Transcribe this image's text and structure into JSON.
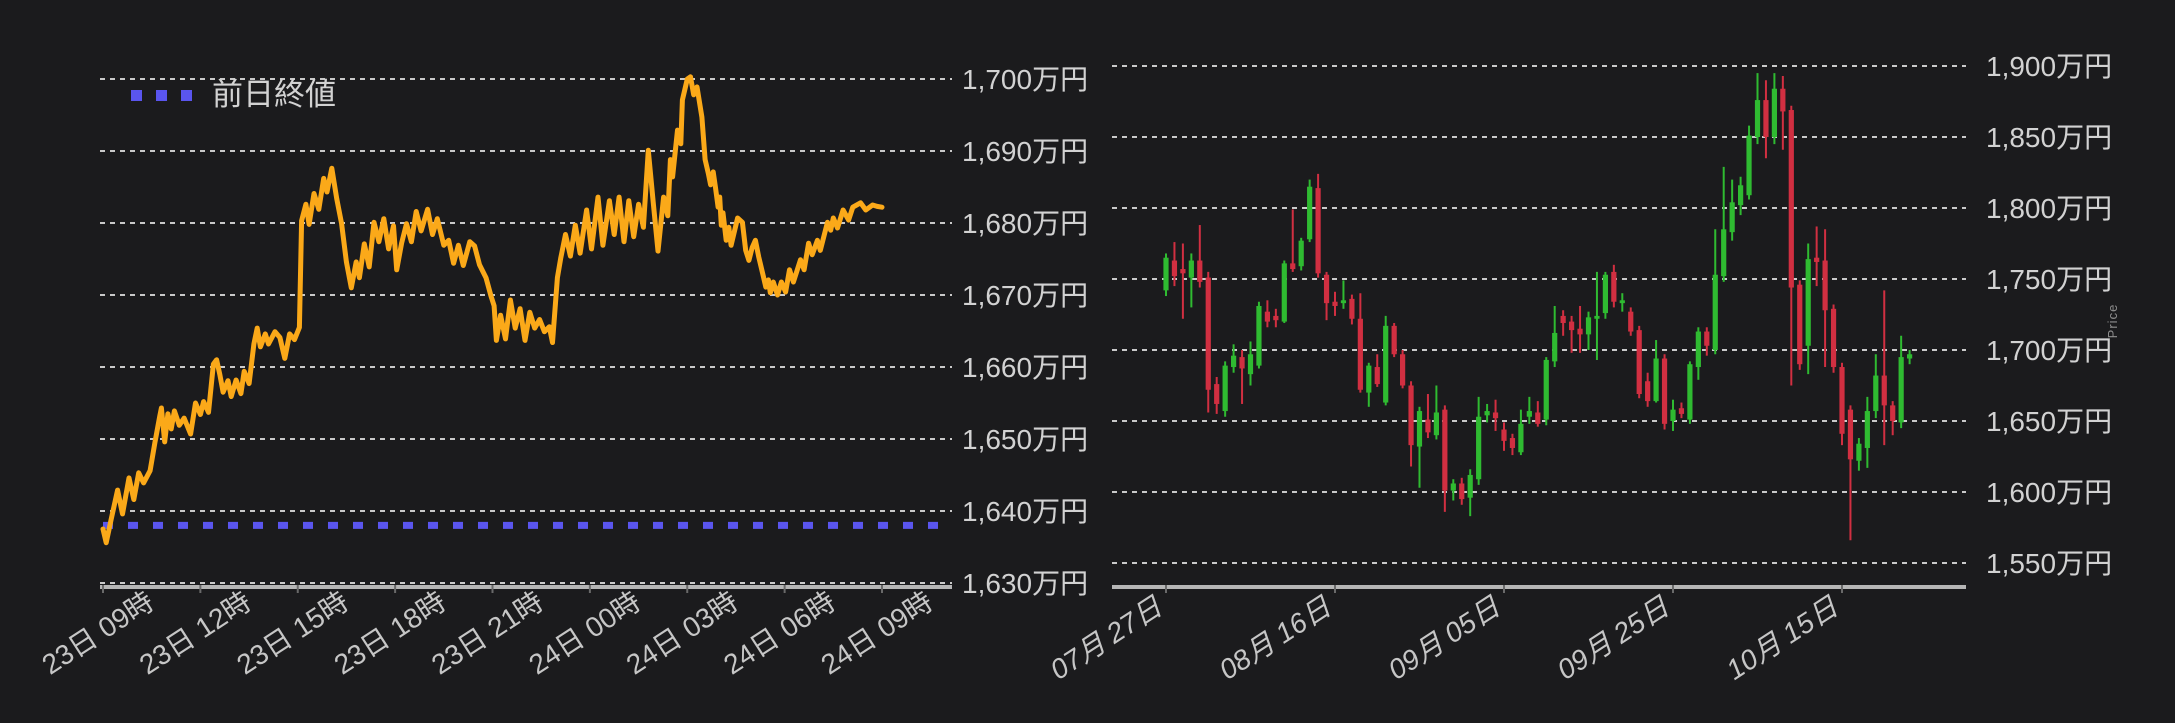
{
  "colors": {
    "background": "#1b1b1d",
    "grid": "#e9e9e9",
    "axis_text": "#d2d2d2",
    "x_axis_text": "#c6c6c6",
    "axis_line": "#b6b6b6",
    "tick": "#6a6a6a",
    "line": "#fba919",
    "previous_close": "#5a55ee",
    "candle_up": "#2fbb31",
    "candle_down": "#d12f41",
    "axis_title_text": "#8f8f8f"
  },
  "chart_data": [
    {
      "type": "line",
      "legend_label": "前日終値",
      "unit": "万円",
      "x_tick_labels": [
        "23日 09時",
        "23日 12時",
        "23日 15時",
        "23日 18時",
        "23日 21時",
        "24日 00時",
        "24日 03時",
        "24日 06時",
        "24日 09時"
      ],
      "x_tick_hours": [
        0,
        3,
        6,
        9,
        12,
        15,
        18,
        21,
        24
      ],
      "x_range_hours": [
        0,
        24
      ],
      "y_tick_labels": [
        "1,700万円",
        "1,690万円",
        "1,680万円",
        "1,670万円",
        "1,660万円",
        "1,650万円",
        "1,640万円",
        "1,630万円"
      ],
      "y_ticks": [
        1700,
        1690,
        1680,
        1670,
        1660,
        1650,
        1640,
        1630
      ],
      "ylim": [
        1630,
        1703
      ],
      "grid": true,
      "previous_close": 1638,
      "points": [
        [
          0,
          1637.5
        ],
        [
          0.1,
          1635.6
        ],
        [
          0.25,
          1638.8
        ],
        [
          0.45,
          1642.9
        ],
        [
          0.6,
          1639.6
        ],
        [
          0.8,
          1644.6
        ],
        [
          0.95,
          1641.6
        ],
        [
          1.1,
          1645.3
        ],
        [
          1.25,
          1643.9
        ],
        [
          1.45,
          1645.6
        ],
        [
          1.6,
          1649.5
        ],
        [
          1.75,
          1653.2
        ],
        [
          1.8,
          1654.3
        ],
        [
          1.9,
          1649.6
        ],
        [
          2,
          1653.5
        ],
        [
          2.1,
          1651.4
        ],
        [
          2.2,
          1653.9
        ],
        [
          2.35,
          1651.9
        ],
        [
          2.5,
          1652.9
        ],
        [
          2.7,
          1650.7
        ],
        [
          2.85,
          1655
        ],
        [
          3,
          1653.4
        ],
        [
          3.1,
          1655.2
        ],
        [
          3.25,
          1653.7
        ],
        [
          3.4,
          1660.4
        ],
        [
          3.5,
          1661
        ],
        [
          3.6,
          1658.9
        ],
        [
          3.7,
          1656.5
        ],
        [
          3.85,
          1658.1
        ],
        [
          3.95,
          1655.9
        ],
        [
          4.1,
          1658.2
        ],
        [
          4.25,
          1656.3
        ],
        [
          4.35,
          1659.4
        ],
        [
          4.5,
          1657.7
        ],
        [
          4.65,
          1663.2
        ],
        [
          4.75,
          1665.4
        ],
        [
          4.85,
          1662.8
        ],
        [
          5,
          1664.6
        ],
        [
          5.1,
          1663.2
        ],
        [
          5.3,
          1664.9
        ],
        [
          5.45,
          1664.1
        ],
        [
          5.6,
          1661.2
        ],
        [
          5.75,
          1664.6
        ],
        [
          5.9,
          1663.8
        ],
        [
          6.05,
          1665.5
        ],
        [
          6.12,
          1680.3
        ],
        [
          6.25,
          1682.6
        ],
        [
          6.35,
          1679.8
        ],
        [
          6.5,
          1684.1
        ],
        [
          6.65,
          1681.9
        ],
        [
          6.8,
          1686.2
        ],
        [
          6.9,
          1684.3
        ],
        [
          7.05,
          1687.6
        ],
        [
          7.2,
          1683.4
        ],
        [
          7.35,
          1679.9
        ],
        [
          7.5,
          1674.6
        ],
        [
          7.65,
          1671
        ],
        [
          7.8,
          1674.6
        ],
        [
          7.9,
          1672.4
        ],
        [
          8.05,
          1677.1
        ],
        [
          8.2,
          1673.9
        ],
        [
          8.35,
          1680.1
        ],
        [
          8.5,
          1677.4
        ],
        [
          8.65,
          1680.6
        ],
        [
          8.8,
          1676.4
        ],
        [
          8.95,
          1679.6
        ],
        [
          9.05,
          1673.5
        ],
        [
          9.2,
          1677.2
        ],
        [
          9.35,
          1679.9
        ],
        [
          9.5,
          1677.4
        ],
        [
          9.65,
          1681.6
        ],
        [
          9.8,
          1678.9
        ],
        [
          10,
          1681.9
        ],
        [
          10.15,
          1678.4
        ],
        [
          10.3,
          1680.6
        ],
        [
          10.5,
          1676.9
        ],
        [
          10.65,
          1677.6
        ],
        [
          10.8,
          1674.4
        ],
        [
          10.95,
          1676.9
        ],
        [
          11.1,
          1674.1
        ],
        [
          11.3,
          1677.4
        ],
        [
          11.45,
          1676.8
        ],
        [
          11.6,
          1674.2
        ],
        [
          11.8,
          1672.4
        ],
        [
          11.95,
          1669.9
        ],
        [
          12.05,
          1668.5
        ],
        [
          12.12,
          1663.7
        ],
        [
          12.25,
          1667.2
        ],
        [
          12.4,
          1663.9
        ],
        [
          12.55,
          1669.3
        ],
        [
          12.7,
          1665.4
        ],
        [
          12.85,
          1668.1
        ],
        [
          13,
          1663.7
        ],
        [
          13.15,
          1667.6
        ],
        [
          13.3,
          1665.4
        ],
        [
          13.45,
          1666.6
        ],
        [
          13.6,
          1664.9
        ],
        [
          13.75,
          1665.6
        ],
        [
          13.85,
          1663.4
        ],
        [
          14,
          1672.4
        ],
        [
          14.1,
          1675.1
        ],
        [
          14.25,
          1678.4
        ],
        [
          14.4,
          1675.4
        ],
        [
          14.55,
          1679.7
        ],
        [
          14.7,
          1675.8
        ],
        [
          14.9,
          1681.8
        ],
        [
          15.05,
          1676.4
        ],
        [
          15.25,
          1683.6
        ],
        [
          15.4,
          1676.9
        ],
        [
          15.6,
          1683.1
        ],
        [
          15.75,
          1678.4
        ],
        [
          15.9,
          1683.6
        ],
        [
          16.05,
          1677.4
        ],
        [
          16.2,
          1683.1
        ],
        [
          16.35,
          1678.1
        ],
        [
          16.5,
          1682.6
        ],
        [
          16.65,
          1679.4
        ],
        [
          16.8,
          1690.1
        ],
        [
          16.95,
          1682.9
        ],
        [
          17.1,
          1676.1
        ],
        [
          17.27,
          1683.6
        ],
        [
          17.4,
          1681
        ],
        [
          17.48,
          1688.8
        ],
        [
          17.55,
          1686.4
        ],
        [
          17.7,
          1692.9
        ],
        [
          17.8,
          1691
        ],
        [
          17.85,
          1697.1
        ],
        [
          18,
          1700
        ],
        [
          18.1,
          1700.3
        ],
        [
          18.2,
          1697.8
        ],
        [
          18.3,
          1698.9
        ],
        [
          18.45,
          1694.7
        ],
        [
          18.55,
          1688.8
        ],
        [
          18.65,
          1686.9
        ],
        [
          18.72,
          1685.3
        ],
        [
          18.8,
          1687.1
        ],
        [
          18.87,
          1684.9
        ],
        [
          18.95,
          1682.2
        ],
        [
          19,
          1683.6
        ],
        [
          19.05,
          1679.7
        ],
        [
          19.1,
          1681.4
        ],
        [
          19.2,
          1677.6
        ],
        [
          19.28,
          1679.4
        ],
        [
          19.35,
          1676.9
        ],
        [
          19.55,
          1680.7
        ],
        [
          19.7,
          1680.1
        ],
        [
          19.8,
          1676.2
        ],
        [
          19.9,
          1674.8
        ],
        [
          20,
          1676.6
        ],
        [
          20.1,
          1677.6
        ],
        [
          20.2,
          1675.3
        ],
        [
          20.35,
          1672.5
        ],
        [
          20.42,
          1671.1
        ],
        [
          20.5,
          1672.1
        ],
        [
          20.56,
          1670.3
        ],
        [
          20.65,
          1671.8
        ],
        [
          20.78,
          1670
        ],
        [
          20.9,
          1671.8
        ],
        [
          21.03,
          1670.4
        ],
        [
          21.15,
          1673.5
        ],
        [
          21.27,
          1671.8
        ],
        [
          21.49,
          1674.9
        ],
        [
          21.6,
          1673.5
        ],
        [
          21.74,
          1677.2
        ],
        [
          21.85,
          1675.6
        ],
        [
          22.01,
          1677.6
        ],
        [
          22.1,
          1676.2
        ],
        [
          22.32,
          1680.1
        ],
        [
          22.42,
          1679
        ],
        [
          22.5,
          1680.7
        ],
        [
          22.63,
          1679.3
        ],
        [
          22.8,
          1681.8
        ],
        [
          22.97,
          1680.4
        ],
        [
          23.1,
          1682.2
        ],
        [
          23.34,
          1682.8
        ],
        [
          23.5,
          1681.8
        ],
        [
          23.71,
          1682.5
        ],
        [
          23.85,
          1682.3
        ],
        [
          24,
          1682.2
        ]
      ]
    },
    {
      "type": "candlestick",
      "y_axis_title": "Price",
      "unit": "万円",
      "x_tick_labels": [
        "07月 27日",
        "08月 16日",
        "09月 05日",
        "09月 25日",
        "10月 15日"
      ],
      "x_tick_indices": [
        0,
        20,
        40,
        60,
        80
      ],
      "y_tick_labels": [
        "1,900万円",
        "1,850万円",
        "1,800万円",
        "1,750万円",
        "1,700万円",
        "1,650万円",
        "1,600万円",
        "1,550万円"
      ],
      "y_ticks": [
        1900,
        1850,
        1800,
        1750,
        1700,
        1650,
        1600,
        1550
      ],
      "ylim": [
        1550,
        1900
      ],
      "grid": true,
      "candles": [
        [
          1742,
          1768,
          1738,
          1765
        ],
        [
          1763,
          1776,
          1745,
          1752
        ],
        [
          1757,
          1775,
          1722,
          1754
        ],
        [
          1751,
          1768,
          1730,
          1763
        ],
        [
          1763,
          1788,
          1744,
          1748
        ],
        [
          1751,
          1755,
          1656,
          1672
        ],
        [
          1676,
          1681,
          1655,
          1662
        ],
        [
          1657,
          1692,
          1653,
          1689
        ],
        [
          1688,
          1704,
          1684,
          1696
        ],
        [
          1695,
          1700,
          1662,
          1687
        ],
        [
          1683,
          1706,
          1675,
          1697
        ],
        [
          1689,
          1734,
          1687,
          1731
        ],
        [
          1727,
          1735,
          1716,
          1720
        ],
        [
          1724,
          1729,
          1716,
          1721
        ],
        [
          1720,
          1763,
          1719,
          1761
        ],
        [
          1761,
          1799,
          1755,
          1757
        ],
        [
          1759,
          1779,
          1756,
          1777
        ],
        [
          1778,
          1820,
          1776,
          1815
        ],
        [
          1814,
          1824,
          1751,
          1754
        ],
        [
          1753,
          1755,
          1721,
          1733
        ],
        [
          1734,
          1741,
          1724,
          1731
        ],
        [
          1733,
          1749,
          1729,
          1735
        ],
        [
          1736,
          1739,
          1718,
          1722
        ],
        [
          1722,
          1740,
          1670,
          1672
        ],
        [
          1670,
          1691,
          1660,
          1689
        ],
        [
          1688,
          1697,
          1674,
          1676
        ],
        [
          1663,
          1724,
          1661,
          1717
        ],
        [
          1717,
          1719,
          1695,
          1697
        ],
        [
          1697,
          1700,
          1673,
          1675
        ],
        [
          1675,
          1678,
          1618,
          1633
        ],
        [
          1632,
          1660,
          1603,
          1657
        ],
        [
          1651,
          1669,
          1638,
          1642
        ],
        [
          1640,
          1675,
          1637,
          1656
        ],
        [
          1658,
          1661,
          1586,
          1601
        ],
        [
          1601,
          1609,
          1594,
          1606
        ],
        [
          1606,
          1610,
          1591,
          1595
        ],
        [
          1596,
          1616,
          1583,
          1612
        ],
        [
          1609,
          1667,
          1605,
          1653
        ],
        [
          1654,
          1662,
          1649,
          1657
        ],
        [
          1656,
          1665,
          1643,
          1652
        ],
        [
          1644,
          1649,
          1629,
          1636
        ],
        [
          1638,
          1641,
          1626,
          1631
        ],
        [
          1628,
          1658,
          1626,
          1648
        ],
        [
          1653,
          1667,
          1648,
          1657
        ],
        [
          1656,
          1664,
          1646,
          1648
        ],
        [
          1651,
          1695,
          1647,
          1693
        ],
        [
          1692,
          1731,
          1688,
          1712
        ],
        [
          1724,
          1728,
          1710,
          1719
        ],
        [
          1720,
          1724,
          1698,
          1714
        ],
        [
          1715,
          1731,
          1698,
          1711
        ],
        [
          1711,
          1727,
          1700,
          1723
        ],
        [
          1722,
          1755,
          1693,
          1724
        ],
        [
          1726,
          1755,
          1722,
          1753
        ],
        [
          1755,
          1760,
          1730,
          1734
        ],
        [
          1733,
          1740,
          1727,
          1735
        ],
        [
          1727,
          1730,
          1710,
          1713
        ],
        [
          1714,
          1717,
          1666,
          1669
        ],
        [
          1678,
          1684,
          1660,
          1664
        ],
        [
          1664,
          1707,
          1663,
          1694
        ],
        [
          1694,
          1697,
          1644,
          1648
        ],
        [
          1650,
          1665,
          1643,
          1658
        ],
        [
          1659,
          1663,
          1652,
          1655
        ],
        [
          1651,
          1692,
          1648,
          1690
        ],
        [
          1688,
          1716,
          1679,
          1713
        ],
        [
          1713,
          1716,
          1696,
          1703
        ],
        [
          1700,
          1785,
          1697,
          1753
        ],
        [
          1752,
          1829,
          1748,
          1785
        ],
        [
          1783,
          1820,
          1777,
          1804
        ],
        [
          1802,
          1822,
          1795,
          1816
        ],
        [
          1809,
          1858,
          1806,
          1851
        ],
        [
          1850,
          1895,
          1845,
          1876
        ],
        [
          1876,
          1890,
          1835,
          1850
        ],
        [
          1850,
          1895,
          1845,
          1884
        ],
        [
          1884,
          1893,
          1841,
          1868
        ],
        [
          1869,
          1872,
          1675,
          1744
        ],
        [
          1746,
          1749,
          1686,
          1690
        ],
        [
          1703,
          1775,
          1683,
          1764
        ],
        [
          1765,
          1787,
          1745,
          1762
        ],
        [
          1763,
          1785,
          1688,
          1728
        ],
        [
          1729,
          1732,
          1684,
          1688
        ],
        [
          1688,
          1691,
          1633,
          1641
        ],
        [
          1658,
          1661,
          1566,
          1623
        ],
        [
          1622,
          1638,
          1615,
          1634
        ],
        [
          1631,
          1667,
          1617,
          1657
        ],
        [
          1657,
          1697,
          1652,
          1682
        ],
        [
          1682,
          1742,
          1633,
          1661
        ],
        [
          1661,
          1664,
          1640,
          1650
        ],
        [
          1649,
          1710,
          1645,
          1695
        ],
        [
          1694,
          1700,
          1690,
          1697
        ]
      ]
    }
  ]
}
